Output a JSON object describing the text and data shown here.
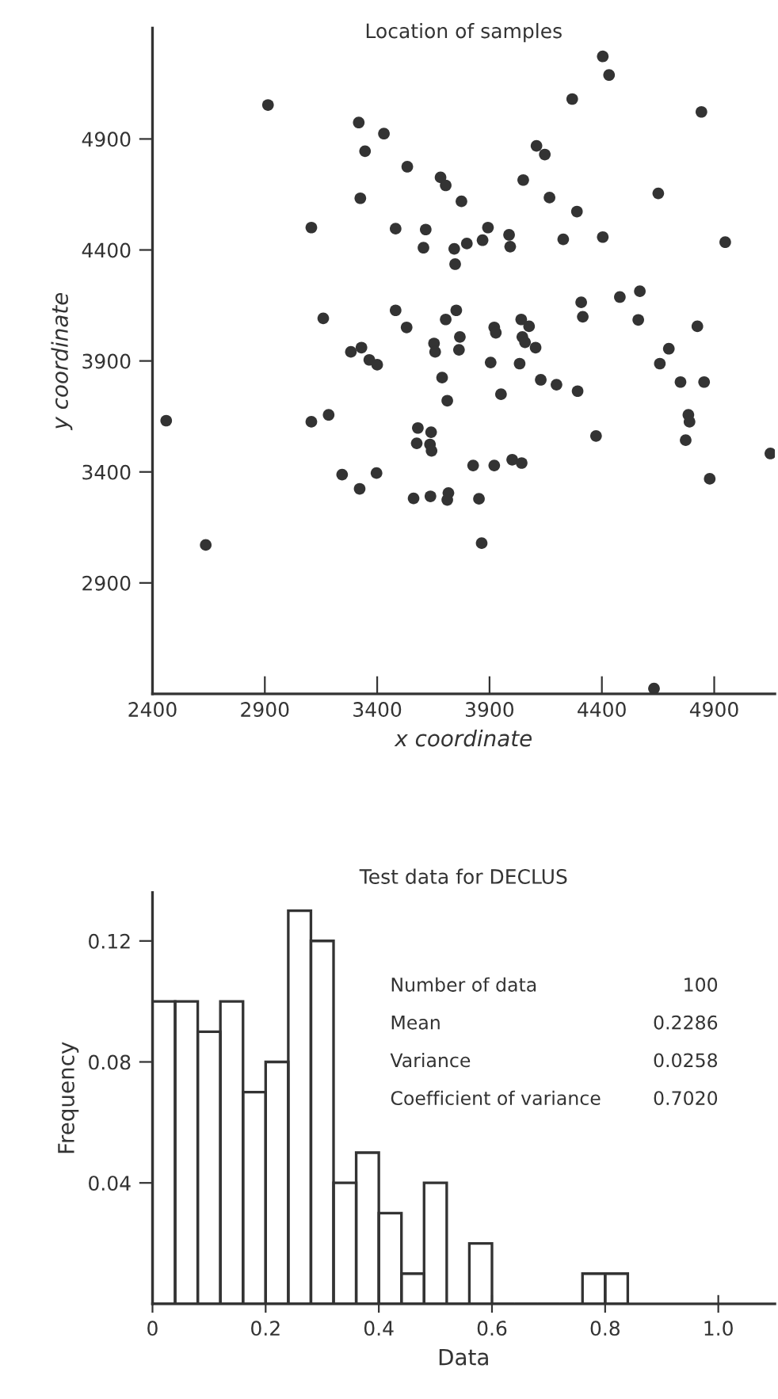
{
  "chart_data": [
    {
      "type": "scatter",
      "title": "Location of samples",
      "xlabel": "x coordinate",
      "ylabel": "y coordinate",
      "marker": "circle",
      "grid": false,
      "series": [
        {
          "color": "#333333",
          "x": [
            2914,
            3318,
            3430,
            3346,
            3534,
            4404,
            4432,
            4268,
            4843,
            4109,
            4146,
            4651,
            4949,
            3682,
            3705,
            4050,
            3325,
            3775,
            4167,
            4289,
            3107,
            3482,
            3616,
            3606,
            3893,
            3869,
            3799,
            3743,
            3747,
            3987,
            3992,
            4228,
            4404,
            4569,
            4480,
            4308,
            4315,
            4562,
            3160,
            3482,
            3531,
            3752,
            3705,
            3768,
            3764,
            3653,
            3658,
            3921,
            3928,
            4041,
            4076,
            4046,
            4058,
            4105,
            4825,
            4698,
            4658,
            3283,
            3330,
            3365,
            3400,
            3905,
            4034,
            3689,
            4128,
            4750,
            4855,
            4198,
            4292,
            3951,
            3712,
            2461,
            3107,
            3184,
            3581,
            3640,
            3576,
            3635,
            3642,
            4374,
            4785,
            4790,
            4773,
            5150,
            3244,
            3397,
            3322,
            3827,
            3921,
            4001,
            4043,
            4880,
            3562,
            3637,
            3717,
            3712,
            3853,
            2637,
            3865,
            4632
          ],
          "values": [
            5053,
            4974,
            4924,
            4845,
            4775,
            5272,
            5188,
            5080,
            5022,
            4869,
            4830,
            4655,
            4435,
            4727,
            4691,
            4715,
            4633,
            4619,
            4636,
            4573,
            4501,
            4496,
            4492,
            4410,
            4501,
            4444,
            4429,
            4405,
            4336,
            4468,
            4415,
            4448,
            4458,
            4214,
            4188,
            4164,
            4099,
            4085,
            4092,
            4128,
            4051,
            4128,
            4087,
            4008,
            3950,
            3979,
            3941,
            4051,
            4027,
            4087,
            4056,
            4008,
            3984,
            3960,
            4056,
            3955,
            3888,
            3941,
            3960,
            3905,
            3883,
            3893,
            3888,
            3825,
            3815,
            3805,
            3805,
            3793,
            3764,
            3750,
            3721,
            3631,
            3626,
            3657,
            3598,
            3579,
            3529,
            3524,
            3495,
            3562,
            3657,
            3626,
            3543,
            3483,
            3388,
            3395,
            3324,
            3429,
            3429,
            3455,
            3440,
            3369,
            3281,
            3290,
            3305,
            3274,
            3279,
            3071,
            3079,
            2424
          ]
        }
      ],
      "xlim": [
        2400,
        5170
      ],
      "ylim": [
        2400,
        5400
      ],
      "xticks": [
        {
          "value": 2400,
          "label": "2400"
        },
        2900,
        3400,
        3900,
        4400,
        4900
      ],
      "yticks": [
        2900,
        3400,
        3900,
        4400,
        4900
      ]
    },
    {
      "type": "histogram",
      "title": "Test data for DECLUS",
      "xlabel": "Data",
      "ylabel": "Frequency",
      "grid": false,
      "color": "#333333",
      "bins": [
        0,
        0.04,
        0.08,
        0.12,
        0.16,
        0.2,
        0.24,
        0.28,
        0.32,
        0.36,
        0.4,
        0.44,
        0.48,
        0.52,
        0.56,
        0.6,
        0.64,
        0.68,
        0.72,
        0.76,
        0.8,
        0.84
      ],
      "values": [
        0.1,
        0.1,
        0.09,
        0.1,
        0.07,
        0.08,
        0.13,
        0.12,
        0.04,
        0.05,
        0.03,
        0.01,
        0.04,
        0,
        0.02,
        0,
        0,
        0,
        0,
        0.01,
        0.01
      ],
      "xlim": [
        0,
        1.1
      ],
      "ylim": [
        0,
        0.136
      ],
      "xticks": [
        0,
        0.2,
        0.4,
        0.6,
        0.8,
        {
          "value": 1,
          "label": "1.0"
        }
      ],
      "yticks": [
        0.04,
        0.08,
        0.12
      ],
      "annotations": [
        "Number of data 100",
        "Mean 0.2286",
        "Variance 0.0258",
        "Coefficient of variance 0.7020"
      ]
    }
  ]
}
